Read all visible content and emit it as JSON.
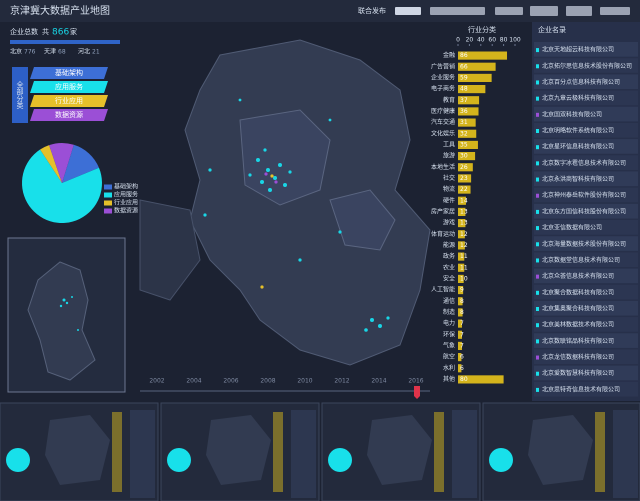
{
  "header": {
    "title": "京津冀大数据产业地图",
    "publisher": "联合发布"
  },
  "summary": {
    "label": "企业总数",
    "prefix": "共",
    "total": 866,
    "suffix": "家",
    "regions": [
      {
        "name": "北京",
        "count": 776
      },
      {
        "name": "天津",
        "count": 68
      },
      {
        "name": "河北",
        "count": 21
      }
    ]
  },
  "category_menu": {
    "all": "全部分类",
    "items": [
      "基础架构",
      "应用服务",
      "行业应用",
      "数据资源"
    ]
  },
  "chart_data": [
    {
      "type": "pie",
      "categories": [
        "基础架构",
        "应用服务",
        "行业应用",
        "数据资源"
      ],
      "values": [
        14,
        72,
        4,
        10
      ],
      "colors": [
        "#3d6fd6",
        "#18e0ea",
        "#e6c02a",
        "#9b4fd6"
      ]
    },
    {
      "type": "bar",
      "title": "行业分类",
      "categories": [
        "金融",
        "广告营销",
        "企业服务",
        "电子商务",
        "教育",
        "医疗健康",
        "汽车交通",
        "文化娱乐",
        "工具",
        "旅游",
        "本地生活",
        "社交",
        "物流",
        "硬件",
        "房产家居",
        "游戏",
        "体育运动",
        "能源",
        "政务",
        "农业",
        "安全",
        "人工智能",
        "通信",
        "制造",
        "电力",
        "环保",
        "气象",
        "航空",
        "水利",
        "其他"
      ],
      "values": [
        86,
        66,
        59,
        48,
        37,
        36,
        31,
        32,
        35,
        30,
        26,
        23,
        22,
        14,
        13,
        13,
        12,
        12,
        11,
        11,
        10,
        9,
        8,
        8,
        7,
        7,
        7,
        6,
        6,
        80
      ],
      "color": "#d4b41c",
      "xlim": [
        0,
        100
      ],
      "xticks": [
        0,
        20,
        40,
        60,
        80,
        100
      ]
    }
  ],
  "company_list": {
    "title": "企业名录",
    "items": [
      "北京天地超云科技有限公司",
      "北京拓尔思信息技术股份有限公司",
      "北京百分点信息科技有限公司",
      "北京九章云极科技有限公司",
      "北京国双科技有限公司",
      "北京明略软件系统有限公司",
      "北京星环信息科技有限公司",
      "北京数字冰雹信息技术有限公司",
      "北京永洪商智科技有限公司",
      "北京神州泰岳软件股份有限公司",
      "北京东方国信科技股份有限公司",
      "北京亚信数据有限公司",
      "北京海量数据技术股份有限公司",
      "北京数据堂信息技术有限公司",
      "北京众荟信息技术有限公司",
      "北京聚合数据科技有限公司",
      "北京集奥聚合科技有限公司",
      "北京美林数据技术有限公司",
      "北京数联铭品科技有限公司",
      "北京龙信数据科技有限公司",
      "北京爱数智慧科技有限公司",
      "北京思特奇信息技术有限公司"
    ]
  },
  "timeline": {
    "years": [
      "2002",
      "2004",
      "2006",
      "2008",
      "2010",
      "2012",
      "2014",
      "2016"
    ]
  }
}
